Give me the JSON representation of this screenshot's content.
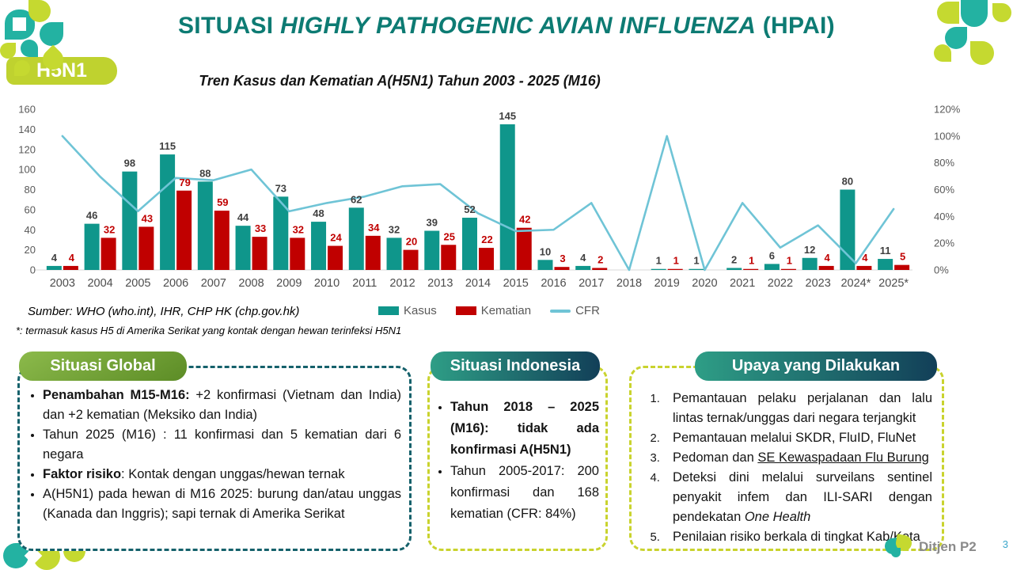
{
  "slide": {
    "title_segments": [
      {
        "t": "SITUASI "
      },
      {
        "t": "HIGHLY PATHOGENIC AVIAN INFLUENZA",
        "i": true
      },
      {
        "t": " (HPAI)"
      }
    ],
    "badge": "H5N1",
    "page_number": "3"
  },
  "colors": {
    "title_teal": "#0D7B73",
    "brand_lime": "#C5D930",
    "logo_teal": "#23B2A2",
    "kasus_teal": "#0F968B",
    "kematian_red": "#C00000",
    "cfr_blue": "#6FC4D6",
    "header_green": "#6F9F35",
    "header_teal_dark": "#14465C"
  },
  "chart_data": {
    "type": "combo-bar-line",
    "title": "Tren Kasus dan Kematian A(H5N1) Tahun 2003 - 2025 (M16)",
    "categories": [
      "2003",
      "2004",
      "2005",
      "2006",
      "2007",
      "2008",
      "2009",
      "2010",
      "2011",
      "2012",
      "2013",
      "2014",
      "2015",
      "2016",
      "2017",
      "2018",
      "2019",
      "2020",
      "2021",
      "2022",
      "2023",
      "2024*",
      "2025*"
    ],
    "series": [
      {
        "name": "Kasus",
        "type": "bar",
        "color": "#0F968B",
        "values": [
          4,
          46,
          98,
          115,
          88,
          44,
          73,
          48,
          62,
          32,
          39,
          52,
          145,
          10,
          4,
          0,
          1,
          1,
          2,
          6,
          12,
          80,
          11
        ]
      },
      {
        "name": "Kematian",
        "type": "bar",
        "color": "#C00000",
        "values": [
          4,
          32,
          43,
          79,
          59,
          33,
          32,
          24,
          34,
          20,
          25,
          22,
          42,
          3,
          2,
          0,
          1,
          0,
          1,
          1,
          4,
          4,
          5
        ]
      },
      {
        "name": "CFR",
        "type": "line",
        "color": "#6FC4D6",
        "axis": "right",
        "values_pct": [
          100,
          69.6,
          43.9,
          68.7,
          67,
          75,
          43.8,
          50,
          54.8,
          62.5,
          64.1,
          42.3,
          29,
          30,
          50,
          0,
          100,
          0,
          50,
          16.7,
          33.3,
          5,
          45.5
        ]
      }
    ],
    "ylim_left": [
      0,
      160
    ],
    "yticks_left": [
      0,
      20,
      40,
      60,
      80,
      100,
      120,
      140,
      160
    ],
    "ylim_right_pct": [
      0,
      120
    ],
    "yticks_right": [
      "0%",
      "20%",
      "40%",
      "60%",
      "80%",
      "100%",
      "120%"
    ],
    "grid": false,
    "legend_position": "bottom-center"
  },
  "chart": {
    "legend": [
      {
        "label": "Kasus",
        "color": "#0F968B",
        "marker": "rect"
      },
      {
        "label": "Kematian",
        "color": "#C00000",
        "marker": "rect"
      },
      {
        "label": "CFR",
        "color": "#6FC4D6",
        "marker": "line"
      }
    ],
    "source": "Sumber: WHO (who.int), IHR, CHP HK (chp.gov.hk)",
    "footnote": "*: termasuk kasus H5 di Amerika Serikat yang kontak dengan hewan terinfeksi H5N1"
  },
  "boxes": {
    "global": {
      "header": "Situasi Global",
      "items": [
        [
          {
            "t": "Penambahan M15-M16:",
            "b": true
          },
          {
            "t": " +2 konfirmasi (Vietnam dan India) dan +2 kematian (Meksiko dan India)"
          }
        ],
        [
          {
            "t": "Tahun 2025 (M16) : 11 konfirmasi dan 5 kematian dari 6 negara"
          }
        ],
        [
          {
            "t": "Faktor risiko",
            "b": true
          },
          {
            "t": ": Kontak dengan unggas/hewan ternak"
          }
        ],
        [
          {
            "t": "A(H5N1) pada hewan di M16 2025: burung dan/atau unggas (Kanada dan Inggris); sapi ternak di Amerika Serikat"
          }
        ]
      ]
    },
    "indonesia": {
      "header": "Situasi Indonesia",
      "items": [
        [
          {
            "t": "Tahun 2018 – 2025 (M16): tidak ada konfirmasi A(H5N1)",
            "b": true
          }
        ],
        [
          {
            "t": "Tahun 2005-2017: 200 konfirmasi dan 168 kematian (CFR: 84%)"
          }
        ]
      ]
    },
    "upaya": {
      "header": "Upaya yang Dilakukan",
      "items": [
        [
          {
            "t": "Pemantauan pelaku perjalanan dan lalu lintas ternak/unggas dari negara terjangkit"
          }
        ],
        [
          {
            "t": "Pemantauan melalui SKDR, FluID, FluNet"
          }
        ],
        [
          {
            "t": "Pedoman dan "
          },
          {
            "t": "SE Kewaspadaan Flu Burung",
            "u": true
          }
        ],
        [
          {
            "t": "Deteksi dini melalui surveilans sentinel penyakit infem dan ILI-SARI dengan pendekatan "
          },
          {
            "t": "One Health",
            "i": true
          }
        ],
        [
          {
            "t": "Penilaian risiko berkala di tingkat Kab/Kota"
          }
        ]
      ]
    }
  },
  "footer": {
    "logo_text": "Ditjen P2"
  }
}
